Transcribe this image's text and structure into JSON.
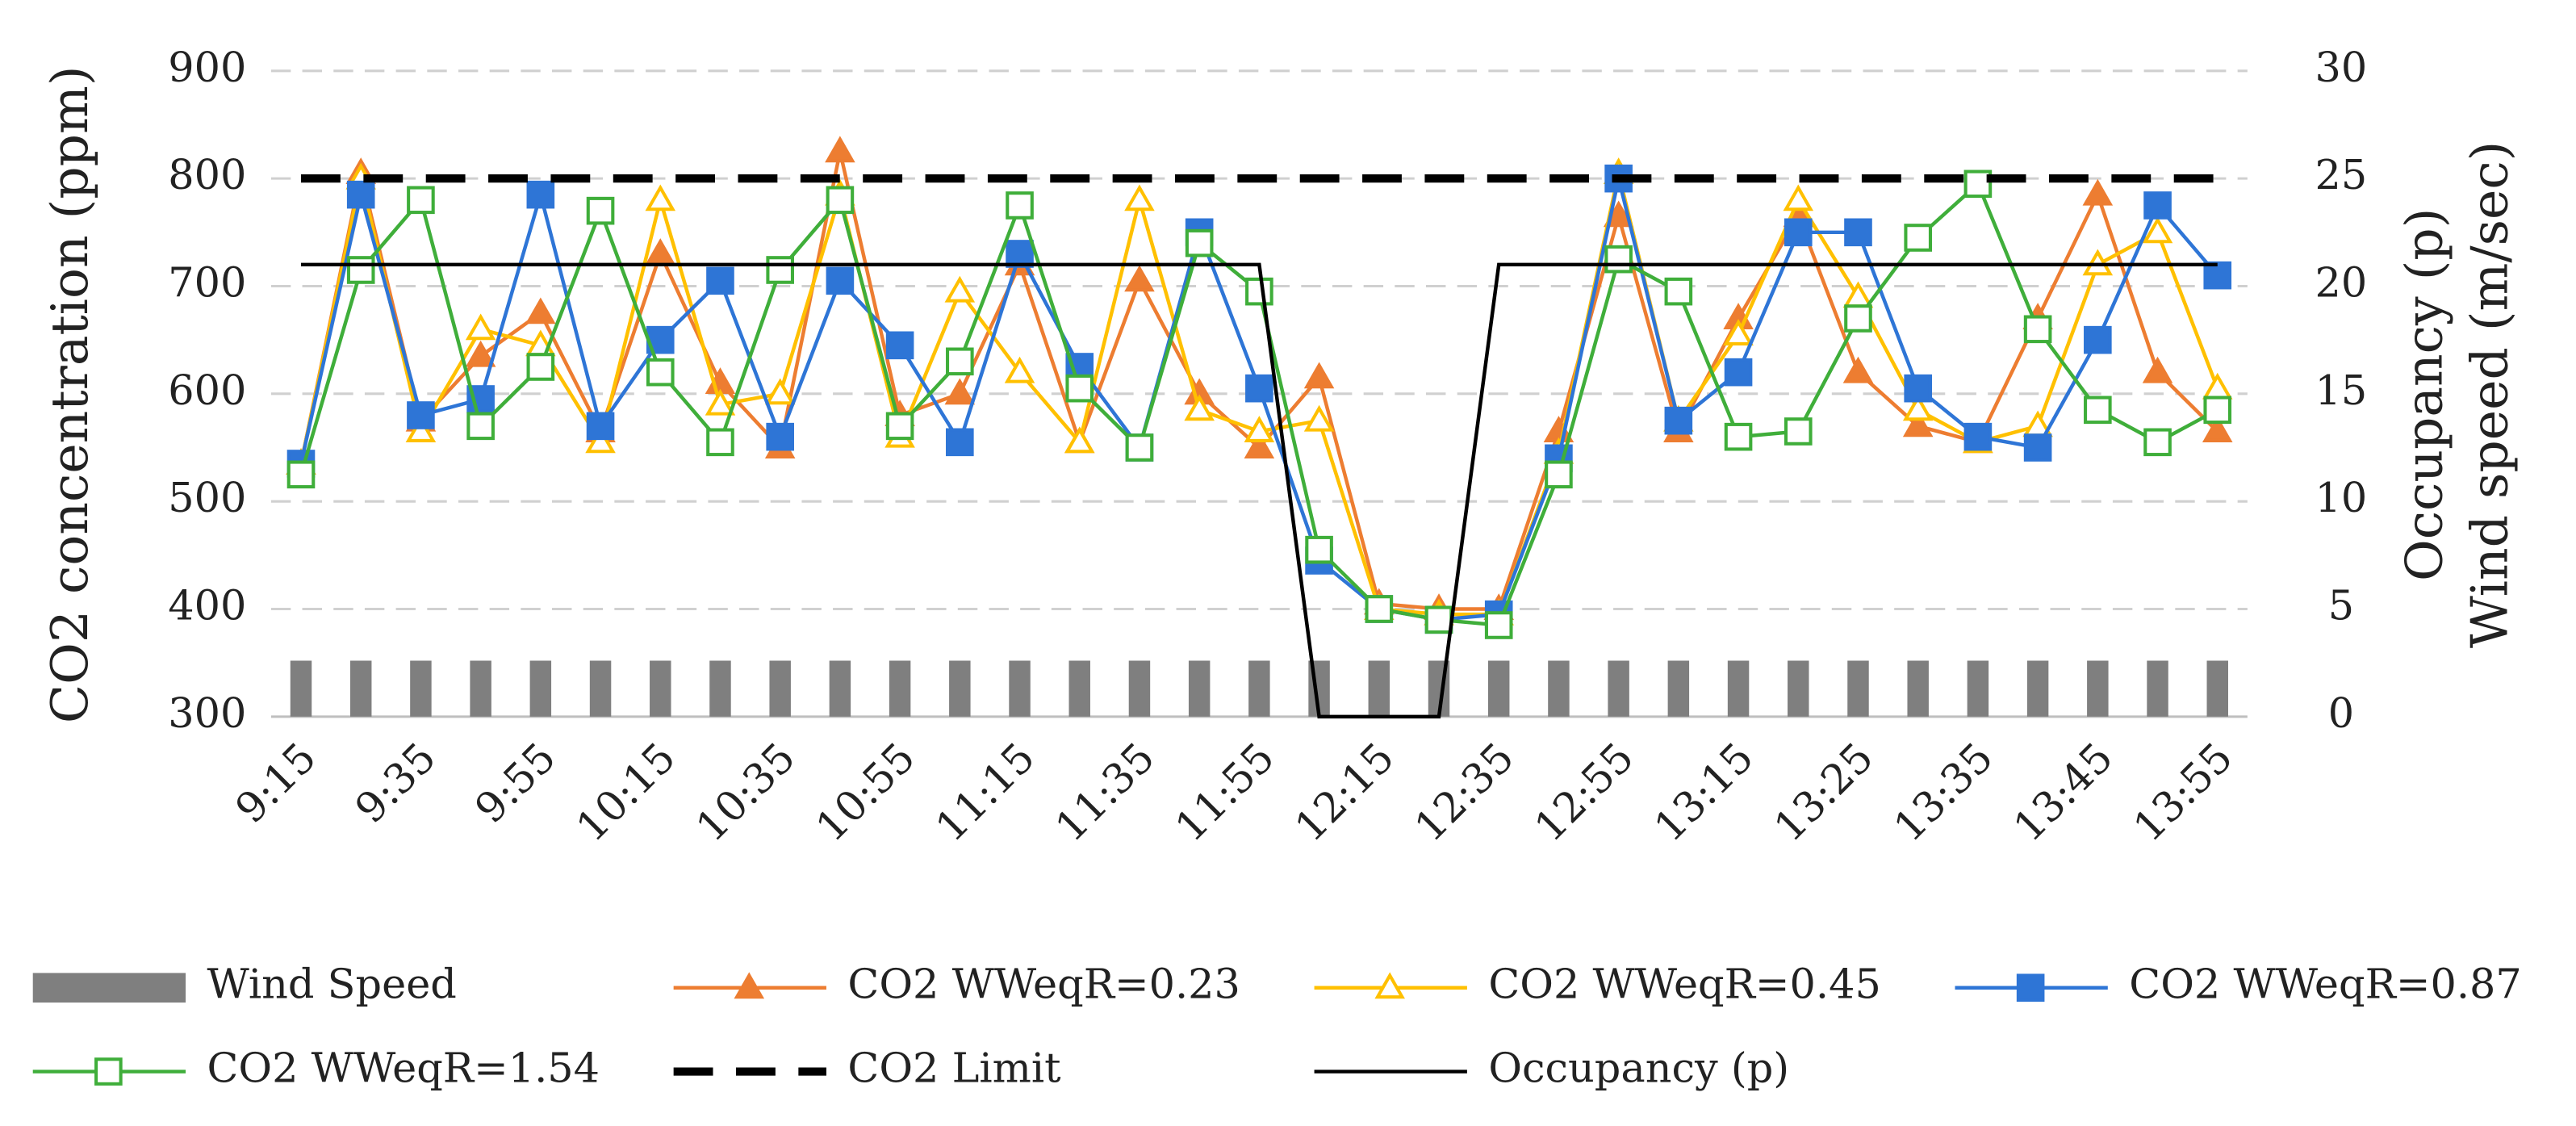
{
  "chart_data": {
    "type": "combo",
    "ylabel": "CO2 concentration (ppm)",
    "y2label": [
      "Occupancy (p)",
      "Wind speed  (m/sec)"
    ],
    "categories": [
      "9:15",
      null,
      "9:35",
      null,
      "9:55",
      null,
      "10:15",
      null,
      "10:35",
      null,
      "10:55",
      null,
      "11:15",
      null,
      "11:35",
      null,
      "11:55",
      null,
      "12:15",
      null,
      "12:35",
      null,
      "12:55",
      null,
      "13:15",
      null,
      "13:25",
      null,
      "13:35",
      null,
      "13:45",
      null,
      "13:55"
    ],
    "ylim": [
      300,
      900
    ],
    "yticks": [
      300,
      400,
      500,
      600,
      700,
      800,
      900
    ],
    "y2lim": [
      0,
      30
    ],
    "y2ticks": [
      0,
      5,
      10,
      15,
      20,
      25,
      30
    ],
    "grid": true,
    "legend": "bottom",
    "series": [
      {
        "name": "Wind Speed",
        "kind": "bar",
        "axis": "y2",
        "color": "#7f7f7f",
        "values": [
          2.6,
          2.6,
          2.6,
          2.6,
          2.6,
          2.6,
          2.6,
          2.6,
          2.6,
          2.6,
          2.6,
          2.6,
          2.6,
          2.6,
          2.6,
          2.6,
          2.6,
          2.6,
          2.6,
          2.6,
          2.6,
          2.6,
          2.6,
          2.6,
          2.6,
          2.6,
          2.6,
          2.6,
          2.6,
          2.6,
          2.6,
          2.6,
          2.6
        ]
      },
      {
        "name": "CO2 WWeqR=0.23",
        "kind": "line",
        "color": "#ed7d31",
        "marker": "triangle",
        "filled": true,
        "values": [
          535,
          805,
          575,
          635,
          675,
          565,
          730,
          610,
          550,
          825,
          580,
          600,
          720,
          555,
          705,
          600,
          550,
          615,
          405,
          400,
          400,
          565,
          765,
          565,
          670,
          765,
          620,
          570,
          555,
          670,
          785,
          620,
          565
        ]
      },
      {
        "name": "CO2 WWeqR=0.45",
        "kind": "line",
        "color": "#ffc000",
        "marker": "triangle",
        "filled": false,
        "values": [
          535,
          800,
          565,
          660,
          645,
          555,
          780,
          590,
          600,
          785,
          560,
          695,
          620,
          555,
          780,
          585,
          565,
          575,
          400,
          395,
          395,
          545,
          805,
          575,
          655,
          780,
          690,
          585,
          555,
          570,
          720,
          750,
          605
        ]
      },
      {
        "name": "CO2 WWeqR=0.87",
        "kind": "line",
        "color": "#2e75d6",
        "marker": "square",
        "filled": true,
        "values": [
          535,
          785,
          580,
          595,
          785,
          570,
          650,
          705,
          560,
          705,
          645,
          555,
          730,
          625,
          550,
          750,
          605,
          445,
          400,
          390,
          395,
          540,
          800,
          575,
          620,
          750,
          750,
          605,
          560,
          550,
          650,
          775,
          710
        ]
      },
      {
        "name": "CO2 WWeqR=1.54",
        "kind": "line",
        "color": "#3fae3a",
        "marker": "square",
        "filled": false,
        "values": [
          525,
          715,
          780,
          570,
          625,
          770,
          620,
          555,
          715,
          780,
          570,
          630,
          775,
          605,
          550,
          740,
          695,
          455,
          400,
          390,
          385,
          525,
          725,
          695,
          560,
          565,
          670,
          745,
          795,
          660,
          585,
          555,
          585
        ]
      },
      {
        "name": "CO2 Limit",
        "kind": "line",
        "color": "#000000",
        "dash": true,
        "values": [
          800,
          800,
          800,
          800,
          800,
          800,
          800,
          800,
          800,
          800,
          800,
          800,
          800,
          800,
          800,
          800,
          800,
          800,
          800,
          800,
          800,
          800,
          800,
          800,
          800,
          800,
          800,
          800,
          800,
          800,
          800,
          800,
          800
        ]
      },
      {
        "name": "Occupancy (p)",
        "kind": "line",
        "axis": "y2",
        "color": "#000000",
        "values": [
          21,
          21,
          21,
          21,
          21,
          21,
          21,
          21,
          21,
          21,
          21,
          21,
          21,
          21,
          21,
          21,
          21,
          0,
          0,
          0,
          21,
          21,
          21,
          21,
          21,
          21,
          21,
          21,
          21,
          21,
          21,
          21,
          21
        ]
      }
    ]
  }
}
